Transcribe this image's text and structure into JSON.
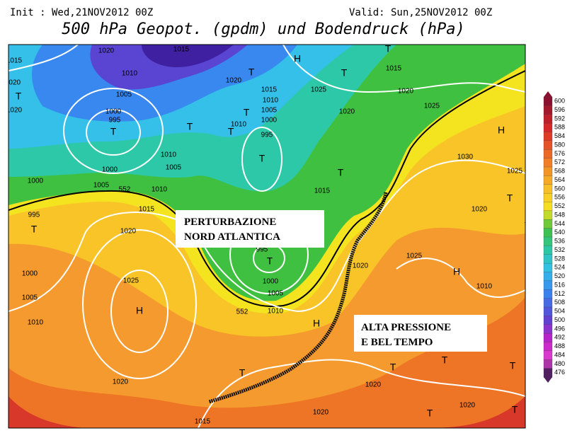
{
  "header": {
    "init": "Init : Wed,21NOV2012 00Z",
    "valid": "Valid: Sun,25NOV2012 00Z",
    "title": "500 hPa Geopot. (gpdm) und Bodendruck (hPa)"
  },
  "annotations": [
    [
      "PERTURBAZIONE",
      "NORD ATLANTICA"
    ],
    [
      "ALTA PRESSIONE",
      "E BEL TEMPO"
    ]
  ],
  "colorbar": {
    "labels": [
      600,
      596,
      592,
      588,
      584,
      580,
      576,
      572,
      568,
      564,
      560,
      556,
      552,
      548,
      544,
      540,
      536,
      532,
      528,
      524,
      520,
      516,
      512,
      508,
      504,
      500,
      496,
      492,
      488,
      484,
      480,
      476
    ]
  },
  "map_labels": [
    "1020",
    "1015",
    "1015",
    "1010",
    "1020",
    "T",
    "1005",
    "1020",
    "1000",
    "995",
    "T",
    "H",
    "T",
    "T",
    "1015",
    "1020",
    "T",
    "1015",
    "1025",
    "1020",
    "1010",
    "1005",
    "T",
    "1000",
    "1025",
    "1020",
    "T",
    "1010",
    "T",
    "995",
    "H",
    "T",
    "1010",
    "1005",
    "1000",
    "1000",
    "1005",
    "1010",
    "1030",
    "1025",
    "T",
    "1015",
    "995",
    "T",
    "1015",
    "1020",
    "1020",
    "T",
    "T",
    "995",
    "T",
    "1025",
    "1020",
    "1000",
    "H",
    "1000",
    "1025",
    "1010",
    "1005",
    "1005",
    "H",
    "1010",
    "H",
    "1010",
    "T",
    "1020",
    "T",
    "T",
    "1020",
    "T",
    "1020",
    "1015",
    "T",
    "T",
    "1020",
    "552",
    "552"
  ]
}
